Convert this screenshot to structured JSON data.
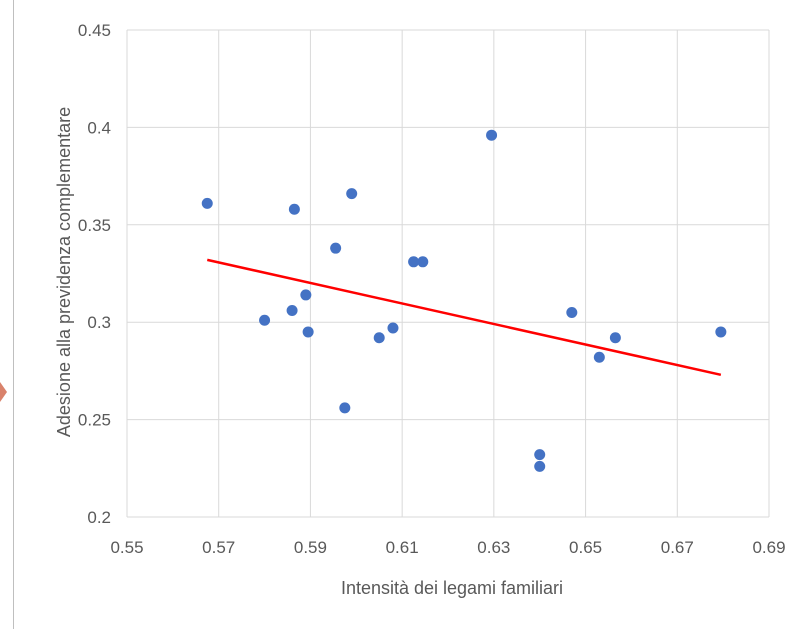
{
  "chart_data": {
    "type": "scatter",
    "xlabel": "Intensità dei legami familiari",
    "ylabel": "Adesione alla previdenza complementare",
    "xlim": [
      0.55,
      0.69
    ],
    "ylim": [
      0.2,
      0.45
    ],
    "x_ticks": [
      "0.55",
      "0.57",
      "0.59",
      "0.61",
      "0.63",
      "0.65",
      "0.67",
      "0.69"
    ],
    "y_ticks": [
      "0.2",
      "0.25",
      "0.3",
      "0.35",
      "0.4",
      "0.45"
    ],
    "grid": true,
    "legend": "none",
    "colors": {
      "points": "#4472C4",
      "trendline": "#FF0000",
      "grid": "#d9d9d9"
    },
    "series": [
      {
        "points": [
          {
            "x": 0.5675,
            "y": 0.361
          },
          {
            "x": 0.5865,
            "y": 0.358
          },
          {
            "x": 0.599,
            "y": 0.366
          },
          {
            "x": 0.5955,
            "y": 0.338
          },
          {
            "x": 0.6125,
            "y": 0.331
          },
          {
            "x": 0.6145,
            "y": 0.331
          },
          {
            "x": 0.6295,
            "y": 0.396
          },
          {
            "x": 0.589,
            "y": 0.314
          },
          {
            "x": 0.586,
            "y": 0.306
          },
          {
            "x": 0.58,
            "y": 0.301
          },
          {
            "x": 0.5895,
            "y": 0.295
          },
          {
            "x": 0.605,
            "y": 0.292
          },
          {
            "x": 0.608,
            "y": 0.297
          },
          {
            "x": 0.5975,
            "y": 0.256
          },
          {
            "x": 0.64,
            "y": 0.232
          },
          {
            "x": 0.64,
            "y": 0.226
          },
          {
            "x": 0.647,
            "y": 0.305
          },
          {
            "x": 0.653,
            "y": 0.282
          },
          {
            "x": 0.6565,
            "y": 0.292
          },
          {
            "x": 0.6795,
            "y": 0.295
          }
        ]
      }
    ],
    "trendline": {
      "type": "linear",
      "x": [
        0.5675,
        0.6795
      ],
      "y": [
        0.332,
        0.273
      ]
    }
  }
}
